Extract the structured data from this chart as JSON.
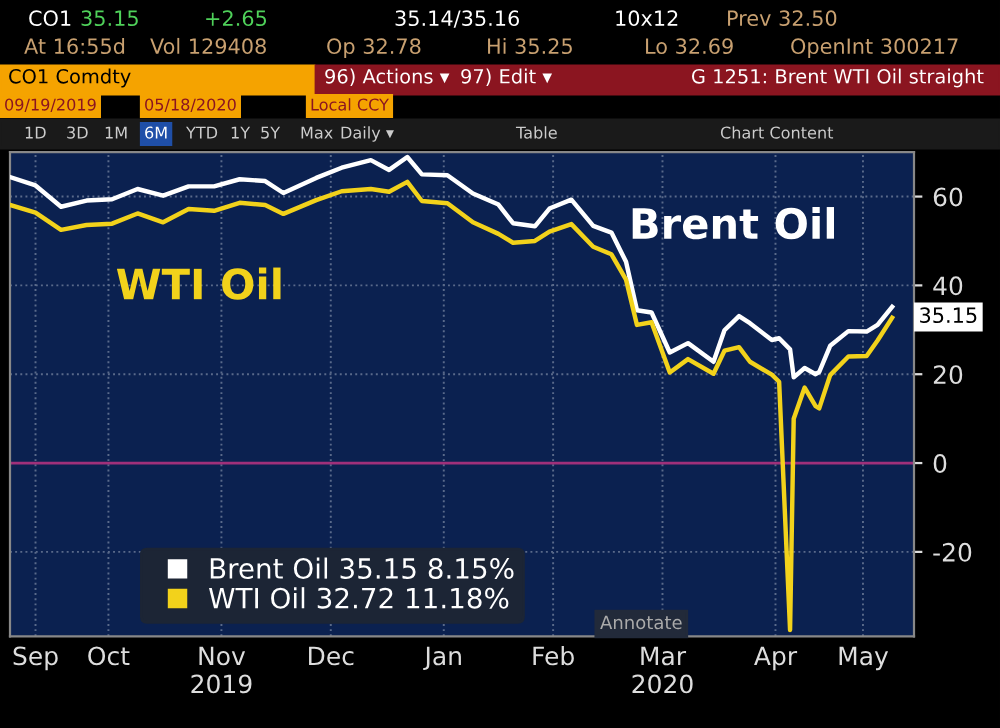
{
  "chart_data": {
    "type": "line",
    "x": [
      "2019-09-19",
      "2019-09-26",
      "2019-10-03",
      "2019-10-10",
      "2019-10-17",
      "2019-10-24",
      "2019-10-31",
      "2019-11-07",
      "2019-11-14",
      "2019-11-21",
      "2019-11-28",
      "2019-12-03",
      "2019-12-12",
      "2019-12-19",
      "2019-12-27",
      "2020-01-01",
      "2020-01-06",
      "2020-01-10",
      "2020-01-17",
      "2020-01-24",
      "2020-01-31",
      "2020-02-04",
      "2020-02-10",
      "2020-02-14",
      "2020-02-20",
      "2020-02-26",
      "2020-03-02",
      "2020-03-06",
      "2020-03-09",
      "2020-03-13",
      "2020-03-18",
      "2020-03-23",
      "2020-03-30",
      "2020-04-02",
      "2020-04-06",
      "2020-04-09",
      "2020-04-15",
      "2020-04-17",
      "2020-04-20",
      "2020-04-21",
      "2020-04-24",
      "2020-04-27",
      "2020-04-28",
      "2020-05-01",
      "2020-05-06",
      "2020-05-11",
      "2020-05-14",
      "2020-05-18"
    ],
    "series": [
      {
        "name": "Brent Oil 35.15 8.15%",
        "color": "#ffffff",
        "values": [
          64.4,
          62.5,
          57.7,
          59.1,
          59.4,
          61.7,
          60.2,
          62.3,
          62.3,
          63.9,
          63.5,
          60.8,
          64.2,
          66.5,
          68.2,
          66.0,
          68.9,
          65.0,
          64.8,
          60.7,
          58.2,
          54.0,
          53.3,
          57.3,
          59.3,
          53.4,
          51.9,
          45.3,
          34.4,
          33.9,
          24.9,
          27.0,
          22.8,
          29.9,
          33.1,
          31.5,
          27.7,
          28.1,
          25.6,
          19.3,
          21.4,
          20.0,
          20.5,
          26.4,
          29.7,
          29.6,
          31.1,
          35.15
        ]
      },
      {
        "name": "WTI Oil 32.72 11.18%",
        "color": "#f2d21b",
        "values": [
          58.1,
          56.4,
          52.5,
          53.6,
          53.9,
          56.2,
          54.2,
          57.2,
          56.8,
          58.6,
          58.1,
          56.1,
          59.2,
          61.2,
          61.7,
          61.1,
          63.3,
          59.0,
          58.5,
          54.2,
          51.6,
          49.6,
          50.0,
          52.1,
          53.8,
          48.7,
          47.0,
          41.3,
          31.1,
          31.7,
          20.4,
          23.4,
          20.1,
          25.3,
          26.1,
          22.8,
          19.9,
          18.3,
          -37.6,
          10.0,
          17.0,
          12.8,
          12.3,
          19.8,
          24.0,
          24.1,
          27.6,
          32.72
        ]
      }
    ],
    "xlim": [
      "2019-09-19",
      "2020-05-24"
    ],
    "xticks": [
      {
        "value": "2019-09-26",
        "label": "Sep"
      },
      {
        "value": "2019-10-16",
        "label": "Oct"
      },
      {
        "value": "2019-11-16",
        "label": "Nov\n2019"
      },
      {
        "value": "2019-12-16",
        "label": "Dec"
      },
      {
        "value": "2020-01-16",
        "label": "Jan"
      },
      {
        "value": "2020-02-15",
        "label": "Feb"
      },
      {
        "value": "2020-03-16",
        "label": "Mar\n2020"
      },
      {
        "value": "2020-04-16",
        "label": "Apr"
      },
      {
        "value": "2020-05-10",
        "label": "May"
      }
    ],
    "ylim": [
      -39,
      70
    ],
    "yticks": [
      -20,
      0,
      20,
      40,
      60
    ],
    "grid": true,
    "legend": "bottom left",
    "marker": "none",
    "line_style": "solid",
    "ref_lines": [
      {
        "axis": "y",
        "value": 0,
        "color": "#a0307a"
      }
    ],
    "annotations": [
      "WTI Oil",
      "Brent Oil",
      {
        "text": "35.15",
        "x": "2020-05-18",
        "y": 35.15
      },
      "Annotate",
      "CO1",
      "35.15",
      "+2.65",
      "35.14/35.16",
      "10x12",
      "Prev 32.50",
      "At 16:55d",
      "Vol 129408",
      "Op 32.78",
      "Hi 35.25",
      "Lo 32.69",
      "OpenInt 300217",
      "CO1 Comdty",
      "96) Actions ▾",
      "97) Edit ▾",
      "G 1251: Brent WTI Oil straight",
      "09/19/2019",
      "05/18/2020",
      "Local CCY",
      "1D",
      "3D",
      "1M",
      "6M",
      "YTD",
      "1Y",
      "5Y",
      "Max",
      "Daily ▾",
      "Table",
      "Chart Content"
    ]
  }
}
